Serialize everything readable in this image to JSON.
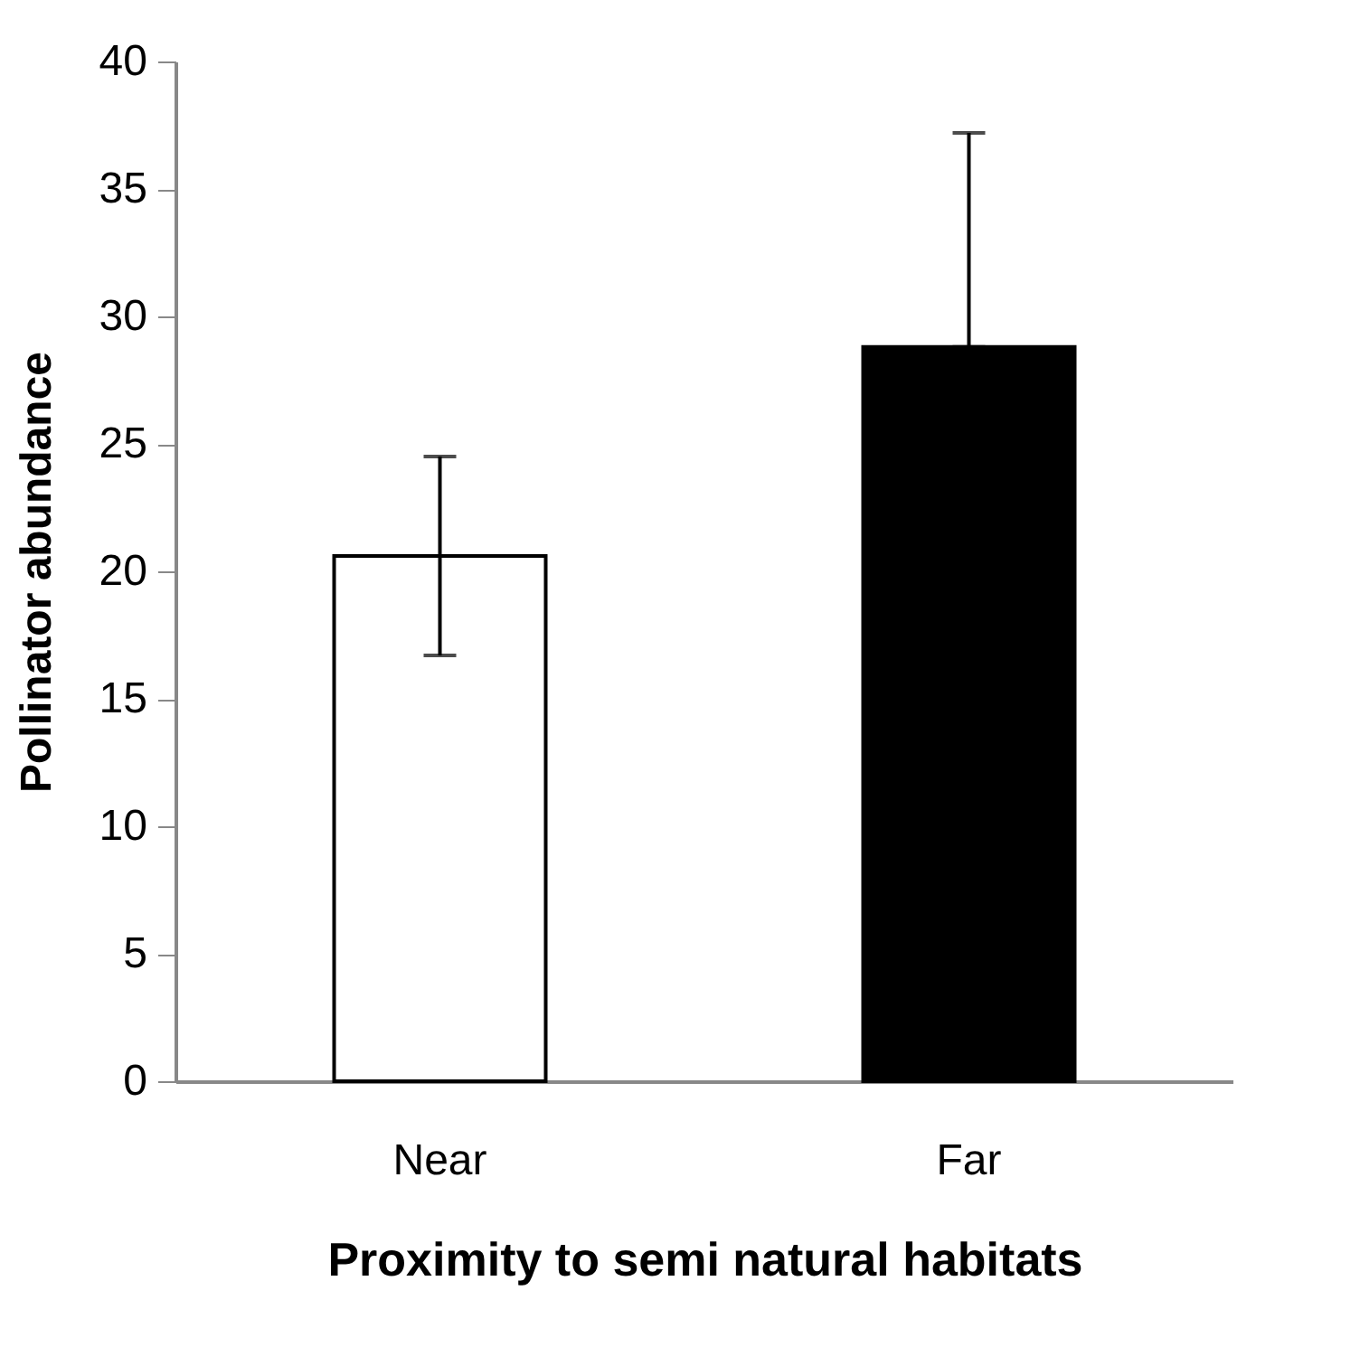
{
  "chart_data": {
    "type": "bar",
    "xlabel": "Proximity to semi natural  habitats",
    "ylabel": "Pollinator abundance",
    "categories": [
      "Near",
      "Far"
    ],
    "values": [
      20.6,
      28.8
    ],
    "errors": [
      3.9,
      [
        28.8,
        37.2
      ]
    ],
    "colors": [
      "#ffffff",
      "#000000"
    ],
    "ylim": [
      0,
      40
    ],
    "yticks": [
      0,
      5,
      10,
      15,
      20,
      25,
      30,
      35,
      40
    ],
    "grid": false
  }
}
